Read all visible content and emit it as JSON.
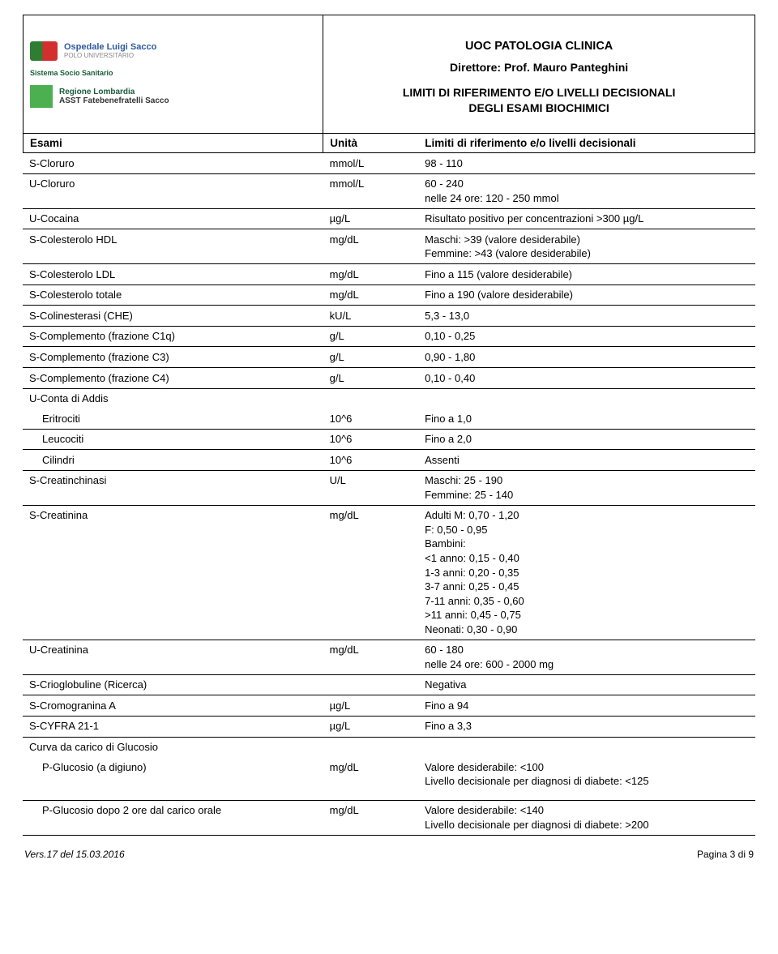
{
  "header": {
    "title": "UOC PATOLOGIA CLINICA",
    "director": "Direttore: Prof. Mauro Panteghini",
    "subtitle_line1": "LIMITI DI RIFERIMENTO E/O LIVELLI DECISIONALI",
    "subtitle_line2": "DEGLI ESAMI BIOCHIMICI",
    "logo1_main": "Ospedale Luigi Sacco",
    "logo1_sub": "POLO UNIVERSITARIO",
    "logo2_l1": "Sistema Socio Sanitario",
    "logo2_l2": "Regione Lombardia",
    "logo2_l3": "ASST Fatebenefratelli Sacco"
  },
  "columns": {
    "c1": "Esami",
    "c2": "Unità",
    "c3": "Limiti di riferimento e/o livelli decisionali"
  },
  "rows": [
    {
      "exam": "S-Cloruro",
      "unit": "mmol/L",
      "limit": "98 -  110",
      "border": true
    },
    {
      "exam": "U-Cloruro",
      "unit": "mmol/L",
      "limit": "60 - 240\nnelle 24 ore: 120 - 250 mmol",
      "border": true
    },
    {
      "exam": "U-Cocaina",
      "unit": "µg/L",
      "limit": "Risultato positivo per concentrazioni >300 µg/L",
      "border": true
    },
    {
      "exam": "S-Colesterolo HDL",
      "unit": "mg/dL",
      "limit": "Maschi: >39 (valore desiderabile)\nFemmine: >43 (valore desiderabile)",
      "border": true
    },
    {
      "exam": "S-Colesterolo LDL",
      "unit": "mg/dL",
      "limit": "Fino a 115 (valore desiderabile)",
      "border": true
    },
    {
      "exam": "S-Colesterolo totale",
      "unit": "mg/dL",
      "limit": "Fino a 190 (valore desiderabile)",
      "border": true
    },
    {
      "exam": "S-Colinesterasi (CHE)",
      "unit": "kU/L",
      "limit": "5,3 -  13,0",
      "border": true
    },
    {
      "exam": "S-Complemento (frazione C1q)",
      "unit": "g/L",
      "limit": "0,10 -  0,25",
      "border": true
    },
    {
      "exam": "S-Complemento (frazione C3)",
      "unit": "g/L",
      "limit": "0,90 -  1,80",
      "border": true
    },
    {
      "exam": "S-Complemento (frazione C4)",
      "unit": "g/L",
      "limit": "0,10 -  0,40",
      "border": true
    },
    {
      "exam": "U-Conta di Addis",
      "unit": "",
      "limit": "",
      "border": false
    },
    {
      "exam": "Eritrociti",
      "unit": "10^6",
      "limit": "Fino a 1,0",
      "border": true,
      "indent": true
    },
    {
      "exam": "Leucociti",
      "unit": "10^6",
      "limit": "Fino a 2,0",
      "border": true,
      "indent": true
    },
    {
      "exam": "Cilindri",
      "unit": "10^6",
      "limit": "Assenti",
      "border": true,
      "indent": true
    },
    {
      "exam": "S-Creatinchinasi",
      "unit": "U/L",
      "limit": "Maschi: 25 - 190\nFemmine: 25 - 140",
      "border": true
    },
    {
      "exam": "S-Creatinina",
      "unit": "mg/dL",
      "limit": "Adulti M: 0,70 - 1,20\nF: 0,50 - 0,95\nBambini:\n<1 anno: 0,15 - 0,40\n1-3 anni: 0,20 - 0,35\n3-7 anni: 0,25 - 0,45\n7-11 anni: 0,35 - 0,60\n>11 anni: 0,45 - 0,75\nNeonati: 0,30 - 0,90",
      "border": true
    },
    {
      "exam": "U-Creatinina",
      "unit": "mg/dL",
      "limit": "60 -   180\nnelle 24 ore: 600 - 2000 mg",
      "border": true
    },
    {
      "exam": "S-Crioglobuline (Ricerca)",
      "unit": "",
      "limit": "Negativa",
      "border": true
    },
    {
      "exam": "S-Cromogranina A",
      "unit": "µg/L",
      "limit": "Fino a 94",
      "border": true
    },
    {
      "exam": "S-CYFRA 21-1",
      "unit": "µg/L",
      "limit": "Fino a 3,3",
      "border": true
    },
    {
      "exam": "Curva da carico di Glucosio",
      "unit": "",
      "limit": "",
      "border": false
    },
    {
      "exam": "P-Glucosio (a digiuno)",
      "unit": "mg/dL",
      "limit": "Valore desiderabile: <100\nLivello decisionale per diagnosi di diabete: <125",
      "border": true,
      "indent": true,
      "gap": true
    },
    {
      "exam": "P-Glucosio dopo 2 ore dal carico orale",
      "unit": "mg/dL",
      "limit": "Valore desiderabile: <140\nLivello decisionale per diagnosi di diabete: >200",
      "border": true,
      "indent": true
    }
  ],
  "footer": {
    "version": "Vers.17 del 15.03.2016",
    "page": "Pagina 3 di 9"
  }
}
